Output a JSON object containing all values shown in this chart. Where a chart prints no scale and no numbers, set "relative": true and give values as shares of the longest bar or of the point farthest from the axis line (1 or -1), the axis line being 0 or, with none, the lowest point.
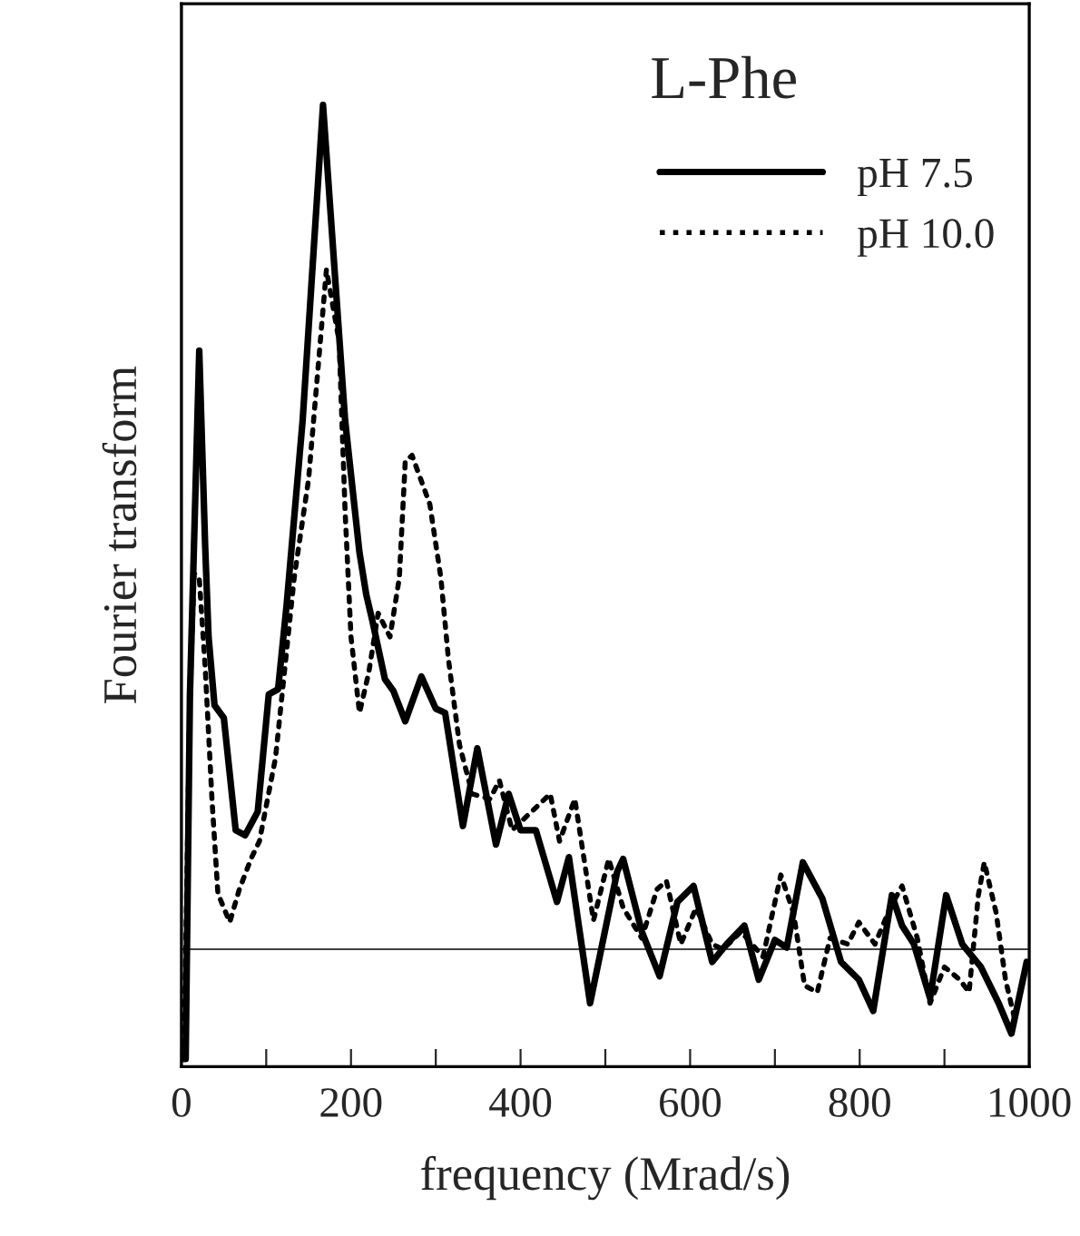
{
  "chart_data": {
    "type": "line",
    "title": "L-Phe",
    "xlabel": "frequency (Mrad/s)",
    "ylabel": "Fourier transform",
    "relative": true,
    "xlim": [
      0,
      1000
    ],
    "xticks": [
      0,
      {
        "value": 100,
        "label": null
      },
      200,
      {
        "value": 300,
        "label": null
      },
      400,
      {
        "value": 500,
        "label": null
      },
      600,
      {
        "value": 700,
        "label": null
      },
      800,
      {
        "value": 900,
        "label": null
      },
      1000
    ],
    "legend": "top right",
    "grid": false,
    "ref_lines": [
      {
        "axis": "y",
        "value": 0,
        "color": "#000000"
      }
    ],
    "series": [
      {
        "name": "pH 7.5",
        "color": "#000000",
        "line_style": "solid",
        "x": [
          0,
          5,
          10,
          21,
          28,
          32,
          39,
          50,
          64,
          75,
          90,
          103,
          114,
          124,
          143,
          167,
          193,
          210,
          218,
          225,
          240,
          250,
          264,
          283,
          300,
          311,
          332,
          349,
          371,
          386,
          400,
          418,
          443,
          457,
          482,
          514,
          521,
          543,
          564,
          585,
          604,
          626,
          643,
          664,
          681,
          700,
          714,
          733,
          756,
          778,
          799,
          816,
          838,
          850,
          864,
          883,
          902,
          921,
          943,
          964,
          979,
          997
        ],
        "values": [
          -0.13,
          -0.13,
          0.3,
          0.709,
          0.477,
          0.37,
          0.289,
          0.274,
          0.141,
          0.135,
          0.163,
          0.302,
          0.308,
          0.407,
          0.627,
          1.0,
          0.627,
          0.47,
          0.42,
          0.39,
          0.32,
          0.306,
          0.27,
          0.323,
          0.285,
          0.28,
          0.146,
          0.238,
          0.124,
          0.184,
          0.141,
          0.141,
          0.056,
          0.109,
          -0.064,
          0.092,
          0.107,
          0.021,
          -0.032,
          0.056,
          0.075,
          -0.015,
          0.006,
          0.028,
          -0.036,
          0.011,
          0.002,
          0.103,
          0.06,
          -0.015,
          -0.036,
          -0.073,
          0.064,
          0.028,
          0.006,
          -0.058,
          0.064,
          0.006,
          -0.021,
          -0.064,
          -0.1,
          -0.015
        ]
      },
      {
        "name": "pH 10.0",
        "color": "#000000",
        "line_style": "dotted",
        "x": [
          3,
          10,
          15,
          21,
          28,
          36,
          43,
          57,
          68,
          82,
          92,
          111,
          133,
          150,
          171,
          186,
          193,
          200,
          210,
          221,
          232,
          246,
          257,
          264,
          272,
          293,
          306,
          315,
          328,
          343,
          364,
          375,
          390,
          435,
          446,
          464,
          486,
          504,
          521,
          543,
          561,
          572,
          589,
          607,
          626,
          639,
          660,
          686,
          707,
          722,
          735,
          750,
          765,
          786,
          799,
          818,
          836,
          850,
          868,
          883,
          900,
          918,
          929,
          940,
          947,
          961,
          972,
          982
        ],
        "values": [
          -0.13,
          0.3,
          0.445,
          0.44,
          0.334,
          0.178,
          0.066,
          0.032,
          0.07,
          0.107,
          0.128,
          0.227,
          0.44,
          0.557,
          0.805,
          0.72,
          0.52,
          0.37,
          0.28,
          0.328,
          0.398,
          0.37,
          0.44,
          0.578,
          0.585,
          0.527,
          0.44,
          0.343,
          0.242,
          0.184,
          0.178,
          0.2,
          0.141,
          0.184,
          0.128,
          0.178,
          0.034,
          0.107,
          0.049,
          0.013,
          0.071,
          0.081,
          0.006,
          0.049,
          0.006,
          0.0,
          0.021,
          -0.009,
          0.088,
          0.043,
          -0.043,
          -0.051,
          0.013,
          0.006,
          0.032,
          0.006,
          0.049,
          0.075,
          0.013,
          -0.064,
          -0.021,
          -0.036,
          -0.051,
          0.064,
          0.103,
          0.043,
          -0.036,
          -0.079
        ]
      }
    ]
  }
}
